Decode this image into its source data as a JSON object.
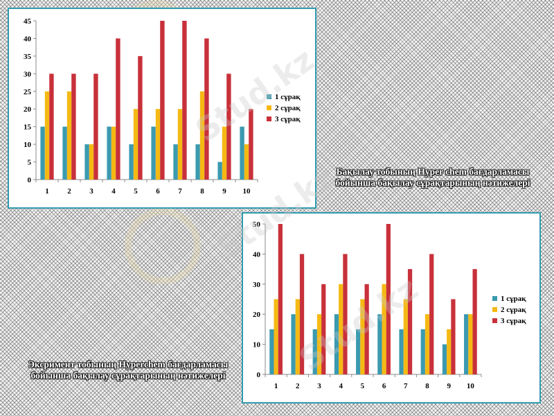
{
  "chart_data": [
    {
      "type": "bar",
      "caption": "Бақылау тобының Hyper chem бағдарламасы бойынша бақылау сұрақтарының нәтижелері",
      "categories": [
        "1",
        "2",
        "3",
        "4",
        "5",
        "6",
        "7",
        "8",
        "9",
        "10"
      ],
      "ylim": [
        0,
        45
      ],
      "yticks": [
        0,
        5,
        10,
        15,
        20,
        25,
        30,
        35,
        40,
        45
      ],
      "legend_position": "right",
      "series": [
        {
          "name": "1 сұрақ",
          "color": "#3b9ab0",
          "values": [
            15,
            15,
            10,
            15,
            10,
            15,
            10,
            10,
            5,
            15
          ]
        },
        {
          "name": " 2 сұрақ",
          "color": "#f5b914",
          "values": [
            25,
            25,
            10,
            15,
            20,
            20,
            20,
            25,
            15,
            10
          ]
        },
        {
          "name": "3 сұрақ",
          "color": "#c8313a",
          "values": [
            30,
            30,
            30,
            40,
            35,
            45,
            45,
            40,
            30,
            20
          ]
        }
      ]
    },
    {
      "type": "bar",
      "caption": "Эксримент тобының Hyperchem бағдарламасы бойынша бақылау сұрақтарының нәтижелері",
      "categories": [
        "1",
        "2",
        "3",
        "4",
        "5",
        "6",
        "7",
        "8",
        "9",
        "10"
      ],
      "ylim": [
        0,
        50
      ],
      "yticks": [
        0,
        10,
        20,
        30,
        40,
        50
      ],
      "legend_position": "right",
      "series": [
        {
          "name": "1  сұрақ",
          "color": "#3b9ab0",
          "values": [
            15,
            20,
            15,
            20,
            15,
            20,
            15,
            15,
            10,
            20
          ]
        },
        {
          "name": "2 сұрақ",
          "color": "#f5b914",
          "values": [
            25,
            25,
            20,
            30,
            25,
            30,
            25,
            20,
            15,
            20
          ]
        },
        {
          "name": "3 сұрақ",
          "color": "#c8313a",
          "values": [
            50,
            40,
            30,
            40,
            30,
            50,
            35,
            40,
            25,
            35
          ]
        }
      ]
    }
  ],
  "watermark_text": "Stud.kz"
}
